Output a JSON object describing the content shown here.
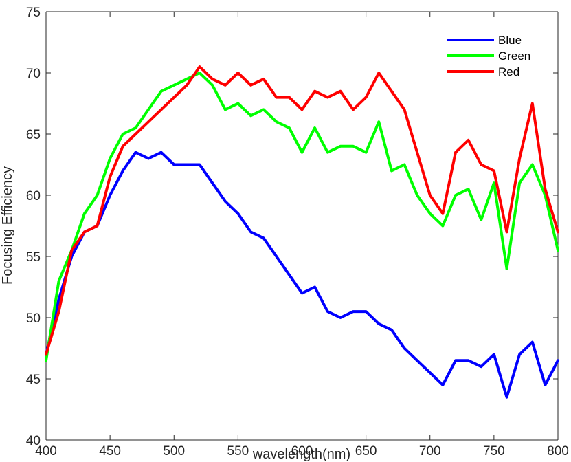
{
  "chart_data": {
    "type": "line",
    "xlabel": "wavelength(nm)",
    "ylabel": "Focusing Efficiency",
    "xlim": [
      400,
      800
    ],
    "ylim": [
      40,
      75
    ],
    "xticks": [
      400,
      450,
      500,
      550,
      600,
      650,
      700,
      750,
      800
    ],
    "yticks": [
      40,
      45,
      50,
      55,
      60,
      65,
      70,
      75
    ],
    "grid": false,
    "legend_position": "top-right",
    "x": [
      400,
      410,
      420,
      430,
      440,
      450,
      460,
      470,
      480,
      490,
      500,
      510,
      520,
      530,
      540,
      550,
      560,
      570,
      580,
      590,
      600,
      610,
      620,
      630,
      640,
      650,
      660,
      670,
      680,
      690,
      700,
      710,
      720,
      730,
      740,
      750,
      760,
      770,
      780,
      790,
      800
    ],
    "series": [
      {
        "name": "Blue",
        "color": "#0000ff",
        "values": [
          47.0,
          51.5,
          55.0,
          57.0,
          57.5,
          60.0,
          62.0,
          63.5,
          63.0,
          63.5,
          62.5,
          62.5,
          62.5,
          61.0,
          59.5,
          58.5,
          57.0,
          56.5,
          55.0,
          53.5,
          52.0,
          52.5,
          50.5,
          50.0,
          50.5,
          50.5,
          49.5,
          49.0,
          47.5,
          46.5,
          45.5,
          44.5,
          46.5,
          46.5,
          46.0,
          47.0,
          43.5,
          47.0,
          48.0,
          44.5,
          46.5
        ]
      },
      {
        "name": "Green",
        "color": "#00ff00",
        "values": [
          46.5,
          53.0,
          55.5,
          58.5,
          60.0,
          63.0,
          65.0,
          65.5,
          67.0,
          68.5,
          69.0,
          69.5,
          70.0,
          69.0,
          67.0,
          67.5,
          66.5,
          67.0,
          66.0,
          65.5,
          63.5,
          65.5,
          63.5,
          64.0,
          64.0,
          63.5,
          66.0,
          62.0,
          62.5,
          60.0,
          58.5,
          57.5,
          60.0,
          60.5,
          58.0,
          61.0,
          54.0,
          61.0,
          62.5,
          60.0,
          55.5
        ]
      },
      {
        "name": "Red",
        "color": "#ff0000",
        "values": [
          47.0,
          50.5,
          55.5,
          57.0,
          57.5,
          61.5,
          64.0,
          65.0,
          66.0,
          67.0,
          68.0,
          69.0,
          70.5,
          69.5,
          69.0,
          70.0,
          69.0,
          69.5,
          68.0,
          68.0,
          67.0,
          68.5,
          68.0,
          68.5,
          67.0,
          68.0,
          70.0,
          68.5,
          67.0,
          63.5,
          60.0,
          58.5,
          63.5,
          64.5,
          62.5,
          62.0,
          57.0,
          63.0,
          67.5,
          60.5,
          57.0
        ]
      }
    ]
  }
}
